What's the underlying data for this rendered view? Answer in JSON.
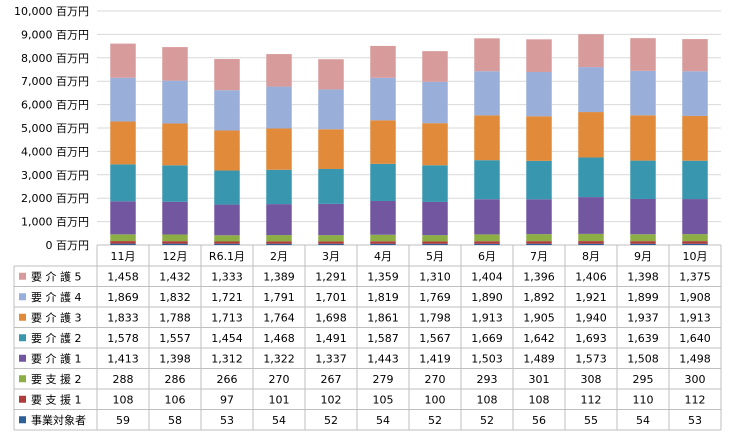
{
  "chart_data": {
    "type": "bar",
    "stacked": true,
    "categories": [
      "11月",
      "12月",
      "R6.1月",
      "2月",
      "3月",
      "4月",
      "5月",
      "6月",
      "7月",
      "8月",
      "9月",
      "10月"
    ],
    "series": [
      {
        "name": "事業対象者",
        "color": "#2E5F97",
        "values": [
          59,
          58,
          53,
          54,
          52,
          54,
          52,
          52,
          56,
          55,
          54,
          53
        ]
      },
      {
        "name": "要 支 援 1",
        "color": "#B03B3B",
        "values": [
          108,
          106,
          97,
          101,
          102,
          105,
          100,
          108,
          108,
          112,
          110,
          112
        ]
      },
      {
        "name": "要 支 援 2",
        "color": "#8CAE45",
        "values": [
          288,
          286,
          266,
          270,
          267,
          279,
          270,
          293,
          301,
          308,
          295,
          300
        ]
      },
      {
        "name": "要 介 護 1",
        "color": "#7256A0",
        "values": [
          1413,
          1398,
          1312,
          1322,
          1337,
          1443,
          1419,
          1503,
          1489,
          1573,
          1508,
          1498
        ]
      },
      {
        "name": "要 介 護 2",
        "color": "#3897AE",
        "values": [
          1578,
          1557,
          1454,
          1468,
          1491,
          1587,
          1567,
          1669,
          1642,
          1693,
          1639,
          1640
        ]
      },
      {
        "name": "要 介 護 3",
        "color": "#E08A3A",
        "values": [
          1833,
          1788,
          1713,
          1764,
          1698,
          1861,
          1798,
          1913,
          1905,
          1940,
          1937,
          1913
        ]
      },
      {
        "name": "要 介 護 4",
        "color": "#99AED8",
        "values": [
          1869,
          1832,
          1721,
          1791,
          1701,
          1819,
          1769,
          1890,
          1892,
          1921,
          1899,
          1908
        ]
      },
      {
        "name": "要 介 護 5",
        "color": "#D89B9B",
        "values": [
          1458,
          1432,
          1333,
          1389,
          1291,
          1359,
          1310,
          1404,
          1396,
          1406,
          1398,
          1375
        ]
      }
    ],
    "y_ticks": [
      "0 百万円",
      "1,000 百万円",
      "2,000 百万円",
      "3,000 百万円",
      "4,000 百万円",
      "5,000 百万円",
      "6,000 百万円",
      "7,000 百万円",
      "8,000 百万円",
      "9,000 百万円",
      "10,000 百万円"
    ],
    "ylim": [
      0,
      10000
    ],
    "grid": true,
    "legend": "data-table"
  },
  "colors": {
    "grid": "#D9D9D9",
    "table_border": "#BFBFBF",
    "text": "#000000"
  }
}
